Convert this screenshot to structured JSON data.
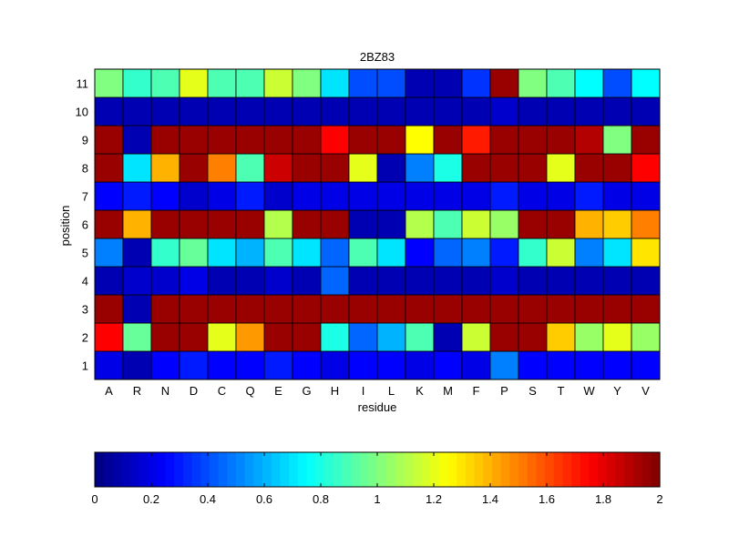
{
  "chart_data": {
    "type": "heatmap",
    "title": "2BZ83",
    "xlabel": "residue",
    "ylabel": "position",
    "x": [
      "A",
      "R",
      "N",
      "D",
      "C",
      "Q",
      "E",
      "G",
      "H",
      "I",
      "L",
      "K",
      "M",
      "F",
      "P",
      "S",
      "T",
      "W",
      "Y",
      "V"
    ],
    "y": [
      "1",
      "2",
      "3",
      "4",
      "5",
      "6",
      "7",
      "8",
      "9",
      "10",
      "11"
    ],
    "values": [
      [
        0.2,
        0.1,
        0.25,
        0.3,
        0.25,
        0.25,
        0.3,
        0.25,
        0.2,
        0.25,
        0.25,
        0.2,
        0.25,
        0.2,
        0.5,
        0.25,
        0.25,
        0.25,
        0.25,
        0.25
      ],
      [
        1.75,
        0.95,
        1.95,
        1.95,
        1.2,
        1.45,
        1.95,
        1.95,
        0.8,
        0.45,
        0.6,
        0.9,
        0.1,
        1.15,
        1.95,
        1.95,
        1.35,
        1.05,
        1.2,
        1.05
      ],
      [
        1.95,
        0.1,
        1.95,
        1.95,
        1.95,
        1.95,
        1.95,
        1.95,
        1.95,
        1.95,
        1.95,
        1.95,
        1.95,
        1.95,
        1.95,
        1.95,
        1.95,
        1.95,
        1.95,
        1.95
      ],
      [
        0.1,
        0.15,
        0.15,
        0.2,
        0.1,
        0.1,
        0.15,
        0.1,
        0.45,
        0.1,
        0.1,
        0.1,
        0.1,
        0.1,
        0.15,
        0.1,
        0.1,
        0.1,
        0.1,
        0.1
      ],
      [
        0.5,
        0.1,
        0.85,
        0.95,
        0.7,
        0.6,
        0.9,
        0.7,
        0.45,
        0.9,
        0.7,
        0.25,
        0.45,
        0.5,
        0.3,
        0.85,
        1.15,
        0.5,
        0.7,
        1.3
      ],
      [
        1.95,
        1.4,
        1.95,
        1.95,
        1.95,
        1.95,
        1.1,
        1.95,
        1.95,
        0.1,
        0.1,
        1.1,
        0.9,
        1.15,
        1.05,
        1.95,
        1.95,
        1.4,
        1.35,
        1.5
      ],
      [
        0.25,
        0.3,
        0.25,
        0.15,
        0.2,
        0.3,
        0.15,
        0.2,
        0.2,
        0.2,
        0.2,
        0.2,
        0.2,
        0.2,
        0.3,
        0.2,
        0.2,
        0.3,
        0.2,
        0.2
      ],
      [
        1.95,
        0.7,
        1.4,
        1.95,
        1.5,
        0.9,
        1.85,
        1.95,
        1.95,
        1.2,
        0.1,
        0.5,
        0.8,
        1.95,
        1.95,
        1.95,
        1.2,
        1.95,
        1.95,
        1.75
      ],
      [
        1.95,
        0.1,
        1.95,
        1.95,
        1.95,
        1.95,
        1.95,
        1.95,
        1.75,
        1.95,
        1.95,
        1.25,
        1.95,
        1.7,
        1.95,
        1.95,
        1.95,
        1.9,
        1.0,
        1.95
      ],
      [
        0.1,
        0.1,
        0.1,
        0.1,
        0.1,
        0.1,
        0.1,
        0.1,
        0.1,
        0.1,
        0.1,
        0.1,
        0.1,
        0.1,
        0.15,
        0.1,
        0.1,
        0.1,
        0.1,
        0.1
      ],
      [
        1.0,
        0.85,
        0.9,
        1.2,
        0.9,
        0.9,
        1.15,
        1.0,
        0.7,
        0.4,
        0.4,
        0.1,
        0.1,
        0.35,
        1.95,
        1.0,
        0.9,
        0.75,
        0.4,
        0.75
      ]
    ],
    "clim": [
      0,
      2
    ],
    "colormap": "jet",
    "colorbar": {
      "orientation": "horizontal",
      "ticks": [
        "0",
        "0.2",
        "0.4",
        "0.6",
        "0.8",
        "1",
        "1.2",
        "1.4",
        "1.6",
        "1.8",
        "2"
      ]
    }
  }
}
